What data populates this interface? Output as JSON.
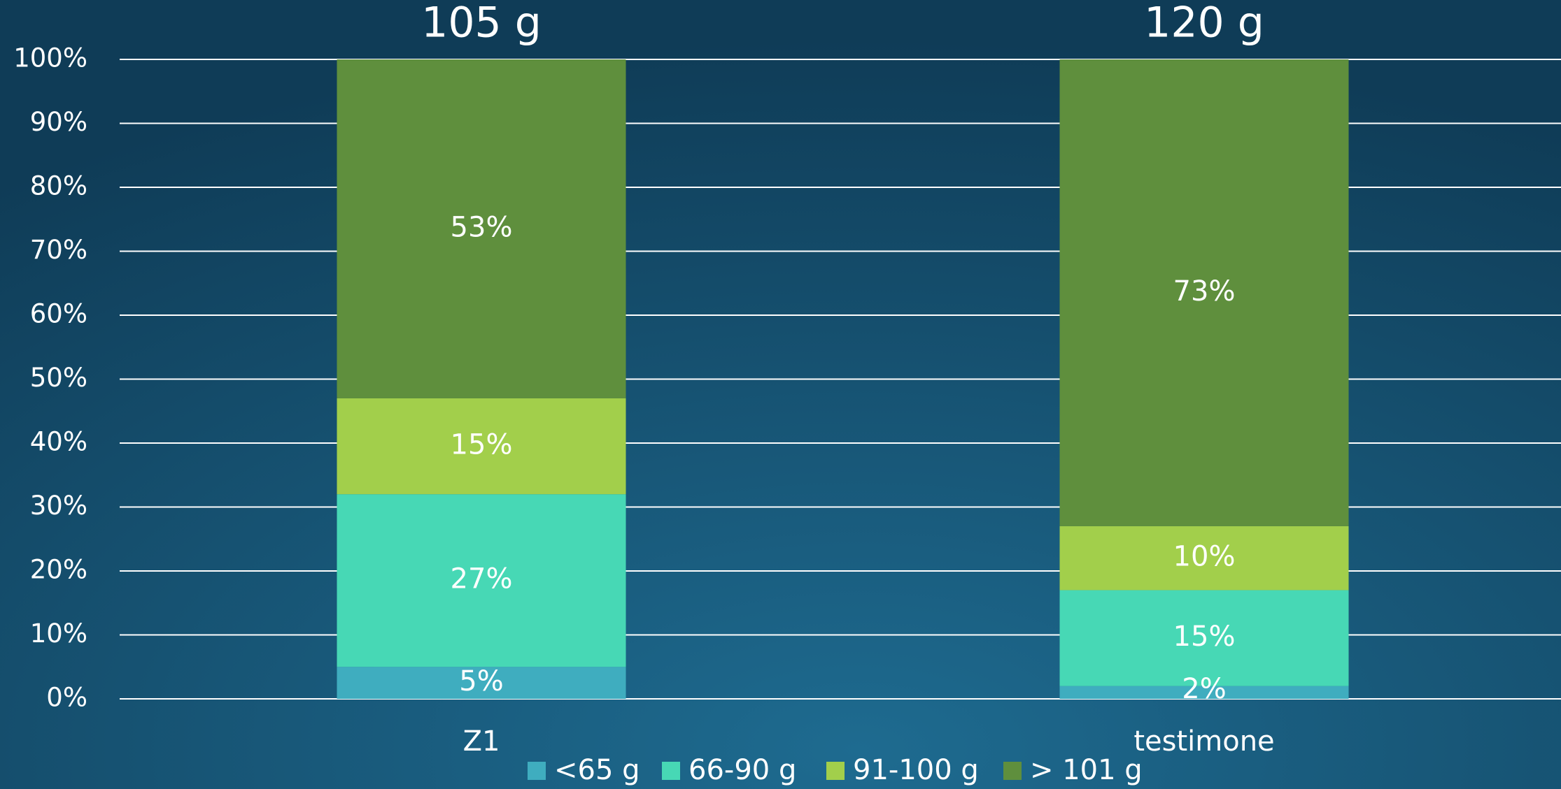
{
  "chart_data": {
    "type": "stacked_bar",
    "annotations": [
      "105 g",
      "120 g"
    ],
    "categories": [
      "Z1",
      "testimone"
    ],
    "series": [
      {
        "name": "<65 g",
        "color": "#3fadbf",
        "values": [
          5,
          2
        ],
        "value_labels": [
          "5%",
          "2%"
        ]
      },
      {
        "name": "66-90 g",
        "color": "#47d8b5",
        "values": [
          27,
          15
        ],
        "value_labels": [
          "27%",
          "15%"
        ]
      },
      {
        "name": "91-100 g",
        "color": "#a2cf4b",
        "values": [
          15,
          10
        ],
        "value_labels": [
          "15%",
          "10%"
        ]
      },
      {
        "name": "> 101 g",
        "color": "#5f8f3d",
        "values": [
          53,
          73
        ],
        "value_labels": [
          "53%",
          "73%"
        ]
      }
    ],
    "ylim": [
      0,
      100
    ],
    "yticks": [
      {
        "value": 0,
        "label": "0%"
      },
      {
        "value": 10,
        "label": "10%"
      },
      {
        "value": 20,
        "label": "20%"
      },
      {
        "value": 30,
        "label": "30%"
      },
      {
        "value": 40,
        "label": "40%"
      },
      {
        "value": 50,
        "label": "50%"
      },
      {
        "value": 60,
        "label": "60%"
      },
      {
        "value": 70,
        "label": "70%"
      },
      {
        "value": 80,
        "label": "80%"
      },
      {
        "value": 90,
        "label": "90%"
      },
      {
        "value": 100,
        "label": "100%"
      }
    ],
    "grid": true,
    "legend": "bottom"
  }
}
